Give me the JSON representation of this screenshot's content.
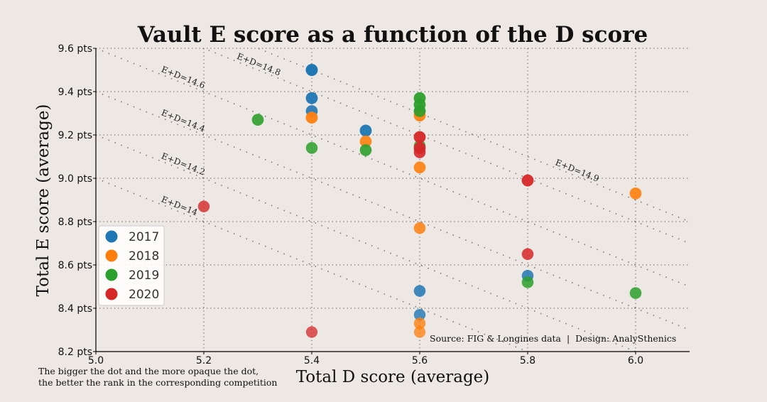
{
  "chart_data": {
    "type": "scatter",
    "title": "Vault E score as a function of the D score",
    "xlabel": "Total D score (average)",
    "ylabel": "Total E score (average)",
    "xlim": [
      5.0,
      6.1
    ],
    "ylim": [
      8.2,
      9.6
    ],
    "xticks": [
      "5.0",
      "5.2",
      "5.4",
      "5.6",
      "5.8",
      "6.0"
    ],
    "xtick_values": [
      5.0,
      5.2,
      5.4,
      5.6,
      5.8,
      6.0
    ],
    "yticks": [
      "8.2 pts",
      "8.4 pts",
      "8.6 pts",
      "8.8 pts",
      "9.0 pts",
      "9.2 pts",
      "9.4 pts",
      "9.6 pts"
    ],
    "ytick_values": [
      8.2,
      8.4,
      8.6,
      8.8,
      9.0,
      9.2,
      9.4,
      9.6
    ],
    "grid": true,
    "legend_position": "bottom-left",
    "iso_lines": [
      {
        "label": "E+D=14",
        "sum": 14.0,
        "label_x": 5.12
      },
      {
        "label": "E+D=14.2",
        "sum": 14.2,
        "label_x": 5.12
      },
      {
        "label": "E+D=14.4",
        "sum": 14.4,
        "label_x": 5.12
      },
      {
        "label": "E+D=14.6",
        "sum": 14.6,
        "label_x": 5.12
      },
      {
        "label": "E+D=14.8",
        "sum": 14.8,
        "label_x": 5.26
      },
      {
        "label": "E+D=14.9",
        "sum": 14.9,
        "label_x": 5.85
      }
    ],
    "series": [
      {
        "name": "2017",
        "color": "#1f77b4",
        "points": [
          {
            "x": 5.4,
            "y": 9.5,
            "opacity": 1.0
          },
          {
            "x": 5.4,
            "y": 9.37,
            "opacity": 0.95
          },
          {
            "x": 5.4,
            "y": 9.31,
            "opacity": 0.9
          },
          {
            "x": 5.5,
            "y": 9.22,
            "opacity": 0.95
          },
          {
            "x": 5.6,
            "y": 9.31,
            "opacity": 0.85
          },
          {
            "x": 5.6,
            "y": 8.48,
            "opacity": 0.85
          },
          {
            "x": 5.6,
            "y": 8.37,
            "opacity": 0.8
          },
          {
            "x": 5.8,
            "y": 8.55,
            "opacity": 0.85
          }
        ]
      },
      {
        "name": "2018",
        "color": "#ff7f0e",
        "points": [
          {
            "x": 5.4,
            "y": 9.28,
            "opacity": 0.95
          },
          {
            "x": 5.5,
            "y": 9.17,
            "opacity": 0.9
          },
          {
            "x": 5.6,
            "y": 9.29,
            "opacity": 0.95
          },
          {
            "x": 5.6,
            "y": 9.05,
            "opacity": 0.9
          },
          {
            "x": 5.6,
            "y": 8.77,
            "opacity": 0.85
          },
          {
            "x": 5.6,
            "y": 8.33,
            "opacity": 0.8
          },
          {
            "x": 5.6,
            "y": 8.29,
            "opacity": 0.75
          },
          {
            "x": 6.0,
            "y": 8.93,
            "opacity": 0.9
          }
        ]
      },
      {
        "name": "2019",
        "color": "#2ca02c",
        "points": [
          {
            "x": 5.3,
            "y": 9.27,
            "opacity": 0.9
          },
          {
            "x": 5.4,
            "y": 9.14,
            "opacity": 0.85
          },
          {
            "x": 5.5,
            "y": 9.13,
            "opacity": 0.9
          },
          {
            "x": 5.6,
            "y": 9.37,
            "opacity": 0.95
          },
          {
            "x": 5.6,
            "y": 9.34,
            "opacity": 0.95
          },
          {
            "x": 5.6,
            "y": 9.31,
            "opacity": 0.9
          },
          {
            "x": 5.6,
            "y": 9.15,
            "opacity": 0.85
          },
          {
            "x": 5.8,
            "y": 8.52,
            "opacity": 0.85
          },
          {
            "x": 6.0,
            "y": 8.47,
            "opacity": 0.85
          }
        ]
      },
      {
        "name": "2020",
        "color": "#d62728",
        "points": [
          {
            "x": 5.2,
            "y": 8.87,
            "opacity": 0.8
          },
          {
            "x": 5.4,
            "y": 8.29,
            "opacity": 0.75
          },
          {
            "x": 5.6,
            "y": 9.19,
            "opacity": 0.95
          },
          {
            "x": 5.6,
            "y": 9.14,
            "opacity": 0.95
          },
          {
            "x": 5.6,
            "y": 9.12,
            "opacity": 0.9
          },
          {
            "x": 5.8,
            "y": 8.99,
            "opacity": 0.95
          },
          {
            "x": 5.8,
            "y": 8.65,
            "opacity": 0.85
          }
        ]
      }
    ],
    "source_note": "Source: FIG & Longines data  |  Design: AnalySthenics",
    "footnote_lines": [
      "The bigger the dot and the more opaque the dot,",
      "the better the rank in the corresponding competition"
    ]
  }
}
